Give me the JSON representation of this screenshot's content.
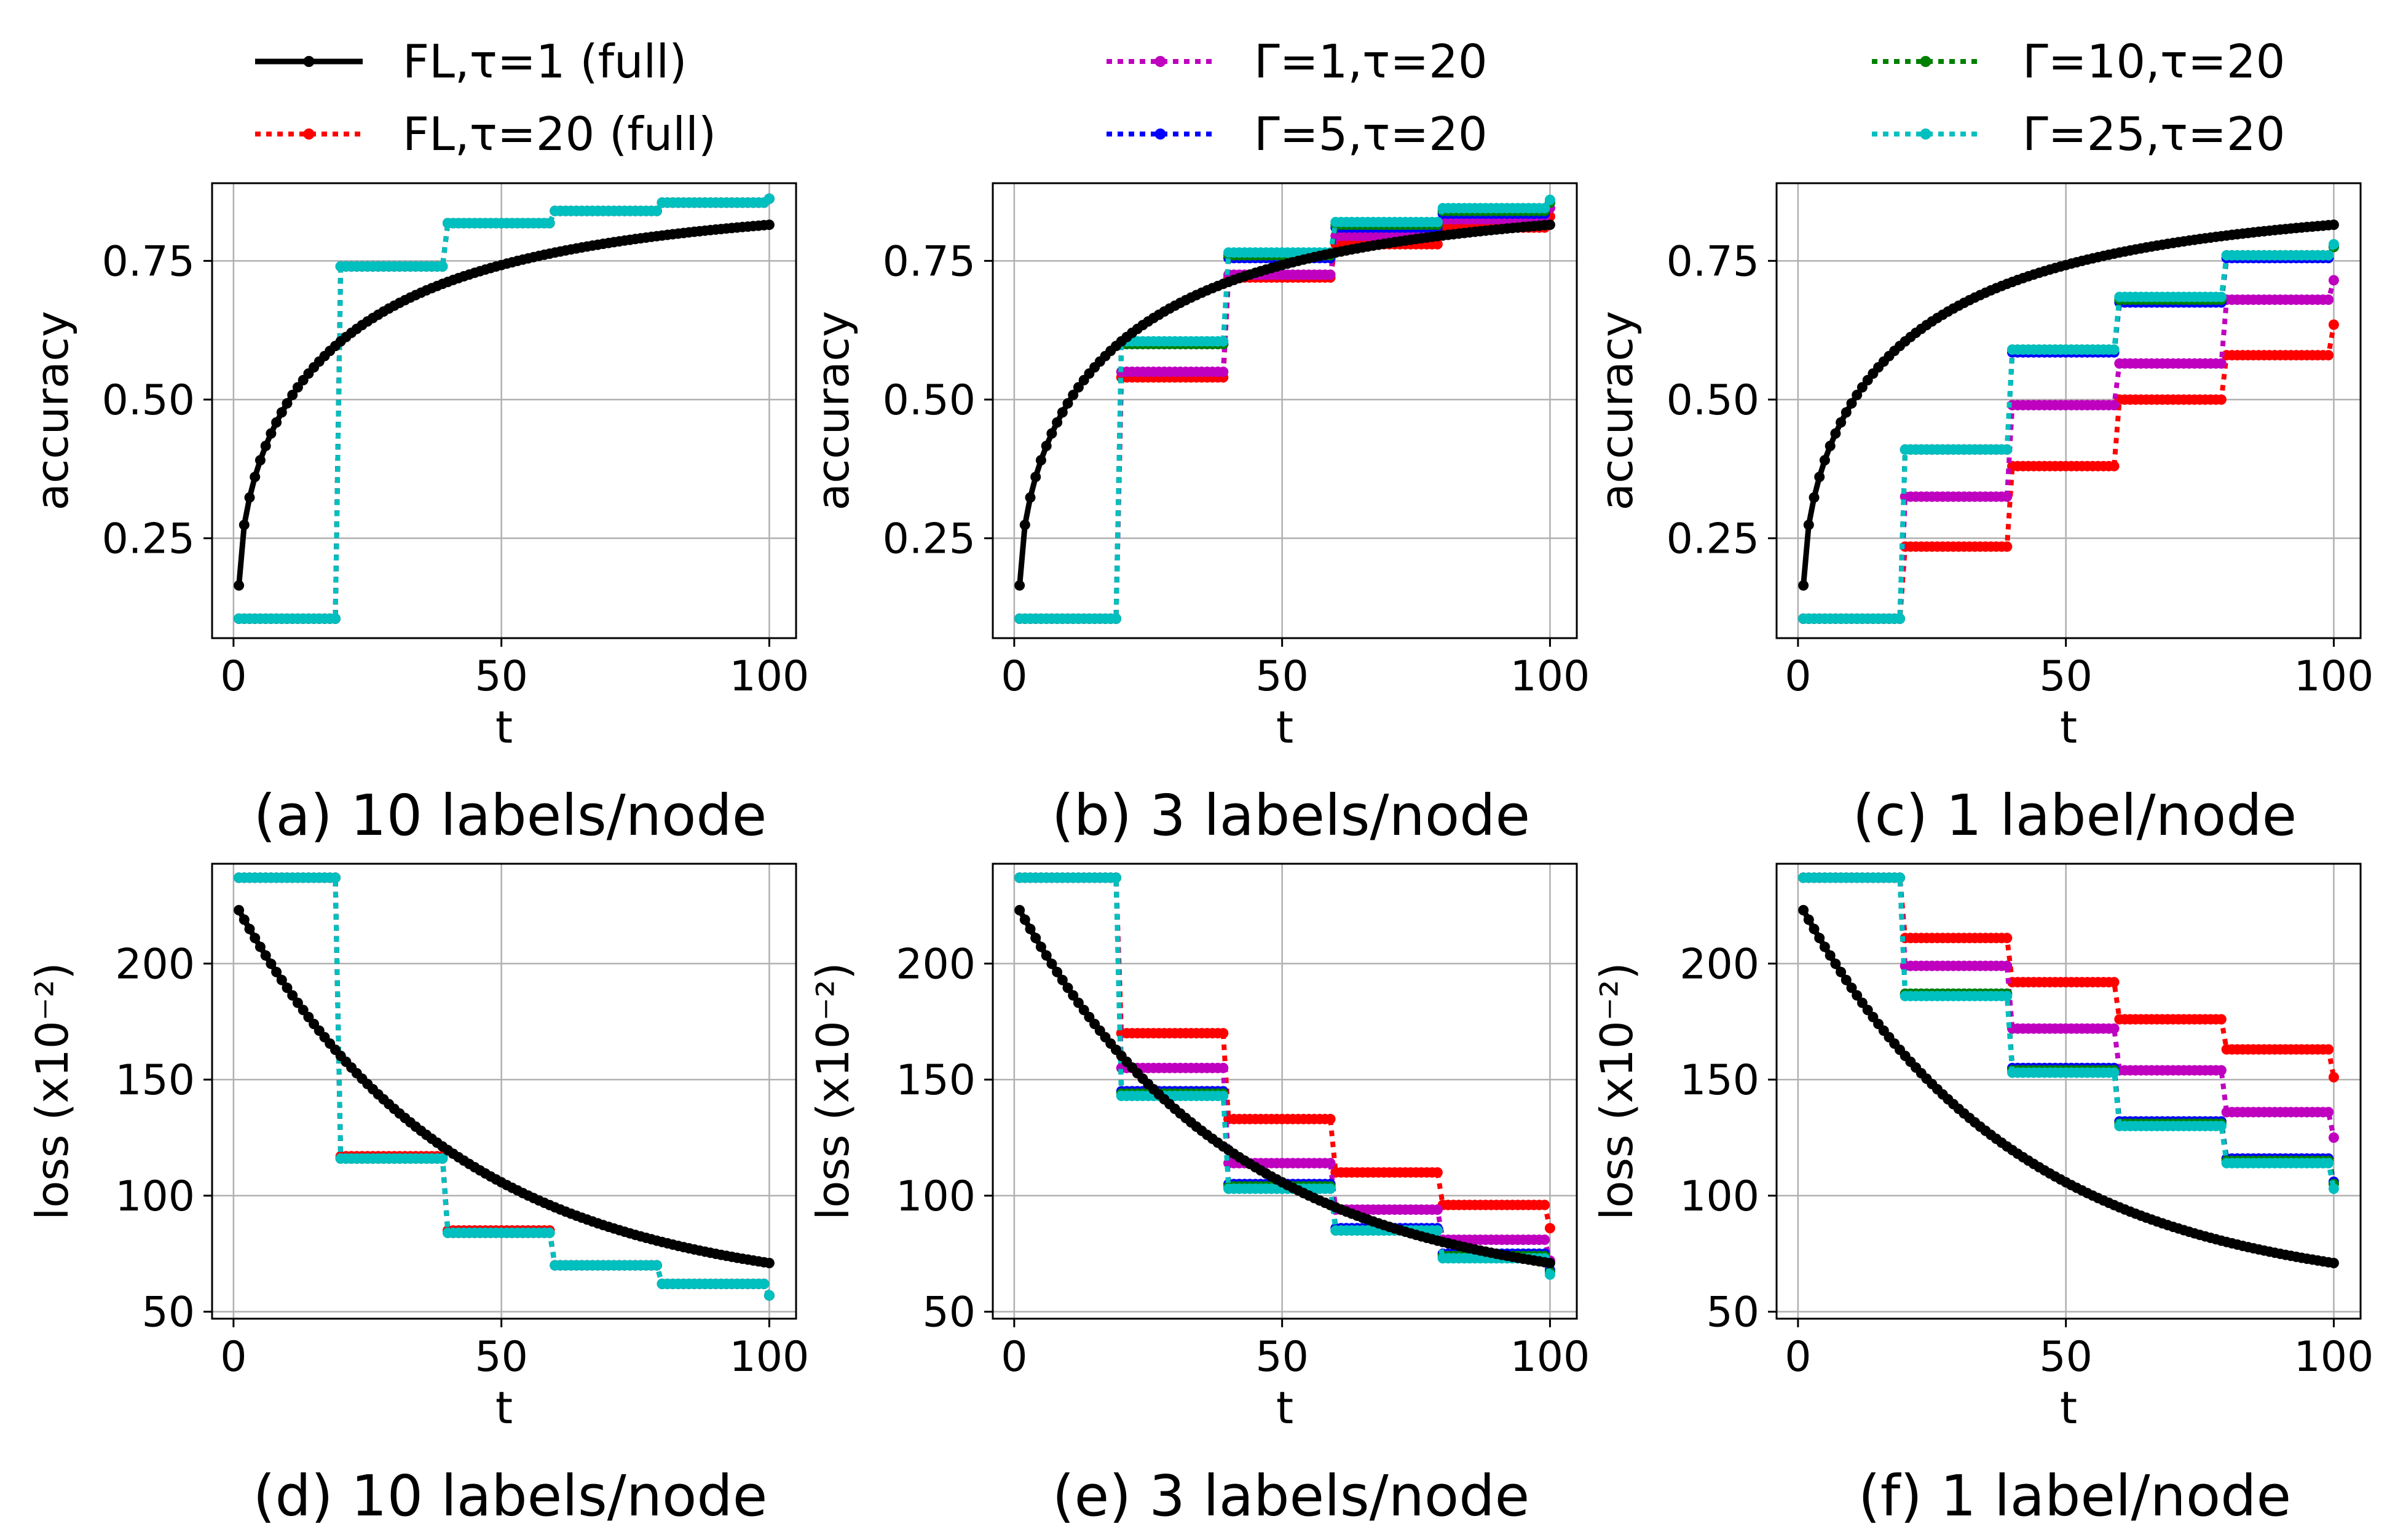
{
  "legend": [
    {
      "key": "fl1",
      "label": "FL,τ=1 (full)",
      "color": "#000000",
      "style": "solid"
    },
    {
      "key": "fl20",
      "label": "FL,τ=20 (full)",
      "color": "#ff0000",
      "style": "dotted"
    },
    {
      "key": "g1",
      "label": "Γ=1,τ=20",
      "color": "#bf00bf",
      "style": "dotted"
    },
    {
      "key": "g5",
      "label": "Γ=5,τ=20",
      "color": "#0000ff",
      "style": "dotted"
    },
    {
      "key": "g10",
      "label": "Γ=10,τ=20",
      "color": "#008000",
      "style": "dotted"
    },
    {
      "key": "g25",
      "label": "Γ=25,τ=20",
      "color": "#00bfbf",
      "style": "dotted"
    }
  ],
  "chart_data": [
    {
      "id": "a",
      "type": "line",
      "caption": "(a) 10 labels/node",
      "xlabel": "t",
      "ylabel": "accuracy",
      "xlim": [
        -4,
        105
      ],
      "ylim": [
        0.07,
        0.89
      ],
      "xticks": [
        0,
        50,
        100
      ],
      "xtick_labels": [
        "0",
        "50",
        "100"
      ],
      "yticks": [
        0.25,
        0.5,
        0.75
      ],
      "ytick_labels": [
        "0.25",
        "0.50",
        "0.75"
      ],
      "fl1": {
        "start": 0.165,
        "end": 0.863,
        "k": 0.17,
        "exponent": 0.6
      },
      "steps": {
        "fl20": [
          0.105,
          0.74,
          0.818,
          0.84,
          0.855,
          0.862
        ],
        "g1": [
          0.105,
          0.74,
          0.818,
          0.84,
          0.855,
          0.862
        ],
        "g5": [
          0.105,
          0.74,
          0.818,
          0.84,
          0.855,
          0.862
        ],
        "g10": [
          0.105,
          0.74,
          0.818,
          0.84,
          0.855,
          0.862
        ],
        "g25": [
          0.105,
          0.74,
          0.818,
          0.84,
          0.855,
          0.862
        ]
      }
    },
    {
      "id": "b",
      "type": "line",
      "caption": "(b) 3 labels/node",
      "xlabel": "t",
      "ylabel": "accuracy",
      "xlim": [
        -4,
        105
      ],
      "ylim": [
        0.07,
        0.89
      ],
      "xticks": [
        0,
        50,
        100
      ],
      "xtick_labels": [
        "0",
        "50",
        "100"
      ],
      "yticks": [
        0.25,
        0.5,
        0.75
      ],
      "ytick_labels": [
        "0.25",
        "0.50",
        "0.75"
      ],
      "fl1": {
        "start": 0.165,
        "end": 0.863,
        "k": 0.17,
        "exponent": 0.6
      },
      "steps": {
        "fl20": [
          0.105,
          0.54,
          0.72,
          0.78,
          0.81,
          0.83
        ],
        "g1": [
          0.105,
          0.55,
          0.725,
          0.795,
          0.825,
          0.845
        ],
        "g5": [
          0.105,
          0.6,
          0.755,
          0.81,
          0.835,
          0.855
        ],
        "g10": [
          0.105,
          0.6,
          0.76,
          0.815,
          0.84,
          0.855
        ],
        "g25": [
          0.105,
          0.605,
          0.765,
          0.82,
          0.845,
          0.86
        ]
      }
    },
    {
      "id": "c",
      "type": "line",
      "caption": "(c) 1 label/node",
      "xlabel": "t",
      "ylabel": "accuracy",
      "xlim": [
        -4,
        105
      ],
      "ylim": [
        0.07,
        0.89
      ],
      "xticks": [
        0,
        50,
        100
      ],
      "xtick_labels": [
        "0",
        "50",
        "100"
      ],
      "yticks": [
        0.25,
        0.5,
        0.75
      ],
      "ytick_labels": [
        "0.25",
        "0.50",
        "0.75"
      ],
      "fl1": {
        "start": 0.165,
        "end": 0.863,
        "k": 0.17,
        "exponent": 0.6
      },
      "steps": {
        "fl20": [
          0.105,
          0.235,
          0.38,
          0.5,
          0.58,
          0.635
        ],
        "g1": [
          0.105,
          0.325,
          0.49,
          0.565,
          0.68,
          0.715
        ],
        "g5": [
          0.105,
          0.41,
          0.585,
          0.675,
          0.755,
          0.775
        ],
        "g10": [
          0.105,
          0.41,
          0.59,
          0.68,
          0.76,
          0.775
        ],
        "g25": [
          0.105,
          0.41,
          0.59,
          0.685,
          0.76,
          0.78
        ]
      }
    },
    {
      "id": "d",
      "type": "line",
      "caption": "(d) 10 labels/node",
      "xlabel": "t",
      "ylabel": "loss (x10⁻²)",
      "xlim": [
        -4,
        105
      ],
      "ylim": [
        47,
        243
      ],
      "xticks": [
        0,
        50,
        100
      ],
      "xtick_labels": [
        "0",
        "50",
        "100"
      ],
      "yticks": [
        50,
        100,
        150,
        200
      ],
      "ytick_labels": [
        "50",
        "100",
        "150",
        "200"
      ],
      "fl1": {
        "start": 223,
        "end": 57,
        "k": 0.025,
        "exponent": 1.0
      },
      "steps": {
        "fl20": [
          237,
          117,
          85,
          70,
          62,
          57
        ],
        "g1": [
          237,
          116,
          84,
          70,
          62,
          57
        ],
        "g5": [
          237,
          116,
          84,
          70,
          62,
          57
        ],
        "g10": [
          237,
          116,
          84,
          70,
          62,
          57
        ],
        "g25": [
          237,
          116,
          84,
          70,
          62,
          57
        ]
      }
    },
    {
      "id": "e",
      "type": "line",
      "caption": "(e) 3 labels/node",
      "xlabel": "t",
      "ylabel": "loss (x10⁻²)",
      "xlim": [
        -4,
        105
      ],
      "ylim": [
        47,
        243
      ],
      "xticks": [
        0,
        50,
        100
      ],
      "xtick_labels": [
        "0",
        "50",
        "100"
      ],
      "yticks": [
        50,
        100,
        150,
        200
      ],
      "ytick_labels": [
        "50",
        "100",
        "150",
        "200"
      ],
      "fl1": {
        "start": 223,
        "end": 57,
        "k": 0.025,
        "exponent": 1.0
      },
      "steps": {
        "fl20": [
          237,
          170,
          133,
          110,
          96,
          86
        ],
        "g1": [
          237,
          155,
          114,
          94,
          81,
          72
        ],
        "g5": [
          237,
          145,
          105,
          86,
          75,
          68
        ],
        "g10": [
          237,
          144,
          104,
          85,
          74,
          67
        ],
        "g25": [
          237,
          143,
          103,
          85,
          73,
          66
        ]
      }
    },
    {
      "id": "f",
      "type": "line",
      "caption": "(f) 1 label/node",
      "xlabel": "t",
      "ylabel": "loss (x10⁻²)",
      "xlim": [
        -4,
        105
      ],
      "ylim": [
        47,
        243
      ],
      "xticks": [
        0,
        50,
        100
      ],
      "xtick_labels": [
        "0",
        "50",
        "100"
      ],
      "yticks": [
        50,
        100,
        150,
        200
      ],
      "ytick_labels": [
        "50",
        "100",
        "150",
        "200"
      ],
      "fl1": {
        "start": 223,
        "end": 57,
        "k": 0.025,
        "exponent": 1.0
      },
      "steps": {
        "fl20": [
          237,
          211,
          192,
          176,
          163,
          151
        ],
        "g1": [
          237,
          199,
          172,
          154,
          136,
          125
        ],
        "g5": [
          237,
          187,
          155,
          132,
          116,
          106
        ],
        "g10": [
          237,
          187,
          154,
          131,
          115,
          105
        ],
        "g25": [
          237,
          186,
          153,
          130,
          114,
          103
        ]
      }
    }
  ]
}
